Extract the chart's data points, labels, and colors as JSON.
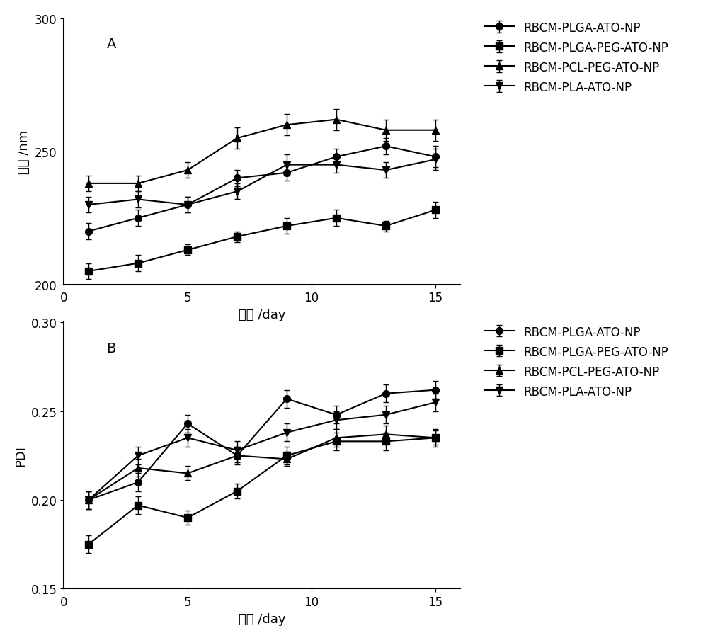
{
  "panel_A": {
    "label": "A",
    "xlabel": "时间 /day",
    "ylabel": "粒径 /nm",
    "xlim": [
      0,
      16
    ],
    "ylim": [
      200,
      300
    ],
    "xticks": [
      0,
      5,
      10,
      15
    ],
    "yticks": [
      200,
      250,
      300
    ],
    "series": [
      {
        "label": "RBCM-PLGA-ATO-NP",
        "marker": "o",
        "x": [
          1,
          3,
          5,
          7,
          9,
          11,
          13,
          15
        ],
        "y": [
          220,
          225,
          230,
          240,
          242,
          248,
          252,
          248
        ],
        "yerr": [
          3,
          3,
          3,
          3,
          3,
          3,
          3,
          4
        ]
      },
      {
        "label": "RBCM-PLGA-PEG-ATO-NP",
        "marker": "s",
        "x": [
          1,
          3,
          5,
          7,
          9,
          11,
          13,
          15
        ],
        "y": [
          205,
          208,
          213,
          218,
          222,
          225,
          222,
          228
        ],
        "yerr": [
          3,
          3,
          2,
          2,
          3,
          3,
          2,
          3
        ]
      },
      {
        "label": "RBCM-PCL-PEG-ATO-NP",
        "marker": "^",
        "x": [
          1,
          3,
          5,
          7,
          9,
          11,
          13,
          15
        ],
        "y": [
          238,
          238,
          243,
          255,
          260,
          262,
          258,
          258
        ],
        "yerr": [
          3,
          3,
          3,
          4,
          4,
          4,
          4,
          4
        ]
      },
      {
        "label": "RBCM-PLA-ATO-NP",
        "marker": "v",
        "x": [
          1,
          3,
          5,
          7,
          9,
          11,
          13,
          15
        ],
        "y": [
          230,
          232,
          230,
          235,
          245,
          245,
          243,
          247
        ],
        "yerr": [
          3,
          3,
          3,
          3,
          4,
          3,
          3,
          4
        ]
      }
    ]
  },
  "panel_B": {
    "label": "B",
    "xlabel": "时间 /day",
    "ylabel": "PDI",
    "xlim": [
      0,
      16
    ],
    "ylim": [
      0.15,
      0.3
    ],
    "xticks": [
      0,
      5,
      10,
      15
    ],
    "yticks": [
      0.15,
      0.2,
      0.25,
      0.3
    ],
    "series": [
      {
        "label": "RBCM-PLGA-ATO-NP",
        "marker": "o",
        "x": [
          1,
          3,
          5,
          7,
          9,
          11,
          13,
          15
        ],
        "y": [
          0.2,
          0.21,
          0.243,
          0.225,
          0.257,
          0.248,
          0.26,
          0.262
        ],
        "yerr": [
          0.005,
          0.005,
          0.005,
          0.005,
          0.005,
          0.005,
          0.005,
          0.005
        ]
      },
      {
        "label": "RBCM-PLGA-PEG-ATO-NP",
        "marker": "s",
        "x": [
          1,
          3,
          5,
          7,
          9,
          11,
          13,
          15
        ],
        "y": [
          0.175,
          0.197,
          0.19,
          0.205,
          0.225,
          0.233,
          0.233,
          0.235
        ],
        "yerr": [
          0.005,
          0.005,
          0.004,
          0.004,
          0.005,
          0.005,
          0.005,
          0.004
        ]
      },
      {
        "label": "RBCM-PCL-PEG-ATO-NP",
        "marker": "^",
        "x": [
          1,
          3,
          5,
          7,
          9,
          11,
          13,
          15
        ],
        "y": [
          0.2,
          0.218,
          0.215,
          0.225,
          0.223,
          0.235,
          0.237,
          0.235
        ],
        "yerr": [
          0.005,
          0.005,
          0.004,
          0.004,
          0.004,
          0.005,
          0.005,
          0.005
        ]
      },
      {
        "label": "RBCM-PLA-ATO-NP",
        "marker": "v",
        "x": [
          1,
          3,
          5,
          7,
          9,
          11,
          13,
          15
        ],
        "y": [
          0.2,
          0.225,
          0.235,
          0.228,
          0.238,
          0.245,
          0.248,
          0.255
        ],
        "yerr": [
          0.005,
          0.005,
          0.005,
          0.005,
          0.005,
          0.005,
          0.005,
          0.005
        ]
      }
    ]
  },
  "line_color": "#000000",
  "marker_size": 7,
  "line_width": 1.5,
  "capsize": 3,
  "legend_fontsize": 12,
  "axis_label_fontsize": 13,
  "tick_fontsize": 12
}
